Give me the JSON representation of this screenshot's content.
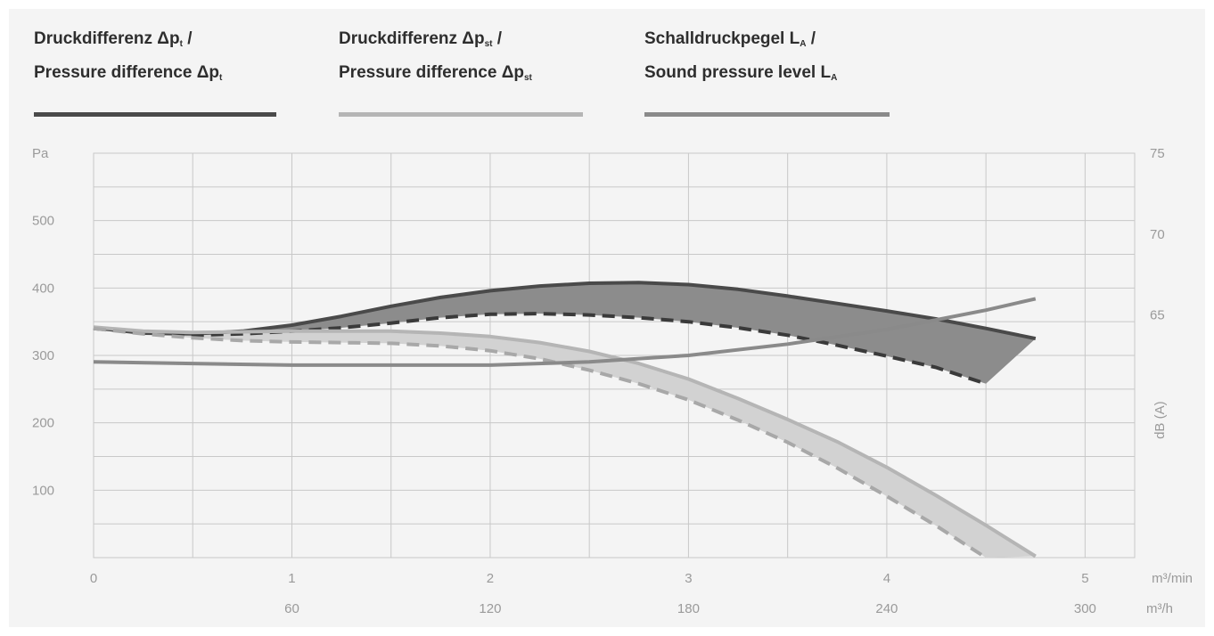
{
  "legend": [
    {
      "line1_main": "Druckdifferenz Δp",
      "line1_sub": "t",
      "line1_tail": " /",
      "line2_main": "Pressure difference Δp",
      "line2_sub": "t",
      "color": "#4a4a4a"
    },
    {
      "line1_main": "Druckdifferenz Δp",
      "line1_sub": "st",
      "line1_tail": " /",
      "line2_main": "Pressure difference Δp",
      "line2_sub": "st",
      "color": "#b5b5b5"
    },
    {
      "line1_main": "Schalldruckpegel L",
      "line1_sub": "A",
      "line1_tail": " /",
      "line2_main": "Sound pressure level L",
      "line2_sub": "A",
      "color": "#8a8a8a"
    }
  ],
  "chart_data": {
    "type": "line",
    "y_left_label": "Pa",
    "y_right_label": "dB (A)",
    "x_unit_top": "m³/min",
    "x_unit_bottom": "m³/h",
    "xlim": [
      0,
      5.25
    ],
    "ylim": [
      0,
      600
    ],
    "y_right_lim": [
      50,
      75
    ],
    "x_ticks_top": [
      0,
      1,
      2,
      3,
      4,
      5
    ],
    "x_ticks_bottom": [
      60,
      120,
      180,
      240,
      300
    ],
    "y_ticks_left": [
      100,
      200,
      300,
      400,
      500
    ],
    "y_ticks_right": [
      65,
      70,
      75
    ],
    "grid": true,
    "series": [
      {
        "name": "Druckdifferenz Δpt / Pressure difference Δpt (max)",
        "axis": "left",
        "color": "#4a4a4a",
        "style": "solid",
        "x": [
          0,
          0.25,
          0.5,
          0.75,
          1.0,
          1.25,
          1.5,
          1.75,
          2.0,
          2.25,
          2.5,
          2.75,
          3.0,
          3.25,
          3.5,
          3.75,
          4.0,
          4.25,
          4.5,
          4.75
        ],
        "y": [
          341,
          333,
          332,
          336,
          345,
          358,
          373,
          386,
          396,
          403,
          407,
          408,
          405,
          398,
          388,
          377,
          366,
          354,
          340,
          325
        ]
      },
      {
        "name": "Druckdifferenz Δpt / Pressure difference Δpt (min)",
        "axis": "left",
        "color": "#3a3a3a",
        "style": "dashed",
        "x": [
          0,
          0.25,
          0.5,
          0.75,
          1.0,
          1.25,
          1.5,
          1.75,
          2.0,
          2.25,
          2.5,
          2.75,
          3.0,
          3.25,
          3.5,
          3.75,
          4.0,
          4.25,
          4.5
        ],
        "y": [
          340,
          333,
          330,
          332,
          336,
          341,
          348,
          356,
          361,
          362,
          360,
          356,
          350,
          341,
          330,
          315,
          299,
          282,
          258
        ]
      },
      {
        "name": "Druckdifferenz Δpst / Pressure difference Δpst (max)",
        "axis": "left",
        "color": "#b5b5b5",
        "style": "solid",
        "x": [
          0,
          0.25,
          0.5,
          0.75,
          1.0,
          1.25,
          1.5,
          1.75,
          2.0,
          2.25,
          2.5,
          2.75,
          3.0,
          3.25,
          3.5,
          3.75,
          4.0,
          4.25,
          4.5,
          4.75
        ],
        "y": [
          342,
          336,
          334,
          335,
          336,
          336,
          336,
          333,
          328,
          319,
          306,
          288,
          265,
          236,
          205,
          172,
          134,
          92,
          48,
          2
        ]
      },
      {
        "name": "Druckdifferenz Δpst / Pressure difference Δpst (min)",
        "axis": "left",
        "color": "#a8a8a8",
        "style": "dashed",
        "x": [
          0,
          0.25,
          0.5,
          0.75,
          1.0,
          1.25,
          1.5,
          1.75,
          2.0,
          2.25,
          2.5,
          2.75,
          3.0,
          3.25,
          3.5,
          3.75,
          4.0,
          4.25,
          4.5
        ],
        "y": [
          340,
          332,
          326,
          322,
          320,
          319,
          318,
          314,
          307,
          295,
          278,
          258,
          234,
          204,
          171,
          133,
          91,
          47,
          0
        ]
      },
      {
        "name": "Schalldruckpegel LA / Sound pressure level LA",
        "axis": "right",
        "color": "#8a8a8a",
        "style": "solid",
        "x": [
          0,
          0.5,
          1.0,
          1.5,
          2.0,
          2.5,
          3.0,
          3.5,
          4.0,
          4.5,
          4.75
        ],
        "y": [
          62.1,
          62.0,
          61.9,
          61.9,
          61.9,
          62.1,
          62.5,
          63.2,
          64.1,
          65.3,
          66.0
        ]
      }
    ],
    "bands": [
      {
        "between": [
          0,
          1
        ],
        "color": "#8c8c8c"
      },
      {
        "between": [
          2,
          3
        ],
        "color": "#d2d2d2"
      }
    ]
  }
}
